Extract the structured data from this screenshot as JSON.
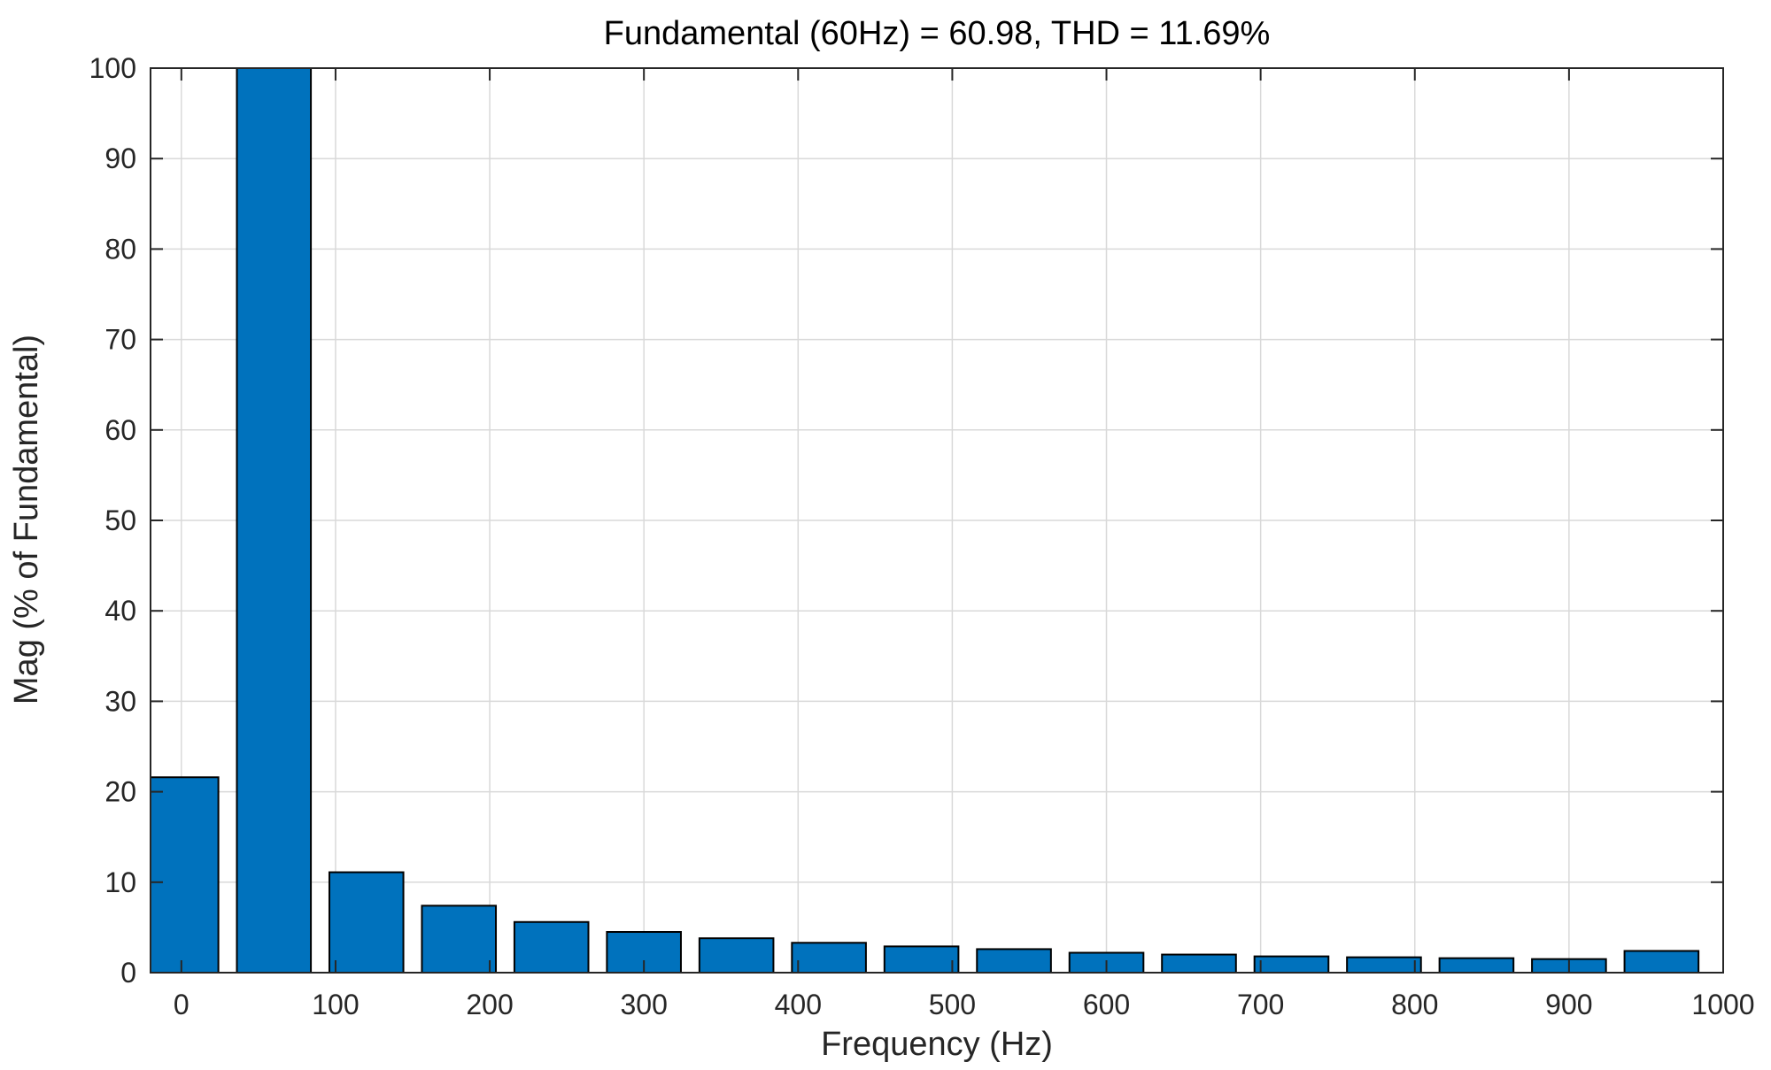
{
  "chart_data": {
    "type": "bar",
    "title": "Fundamental (60Hz) = 60.98, THD = 11.69%",
    "xlabel": "Frequency (Hz)",
    "ylabel": "Mag (% of Fundamental)",
    "x": [
      0,
      60,
      120,
      180,
      240,
      300,
      360,
      420,
      480,
      540,
      600,
      660,
      720,
      780,
      840,
      900,
      960
    ],
    "values": [
      21.6,
      100,
      11.1,
      7.4,
      5.6,
      4.5,
      3.8,
      3.3,
      2.9,
      2.6,
      2.2,
      2.0,
      1.8,
      1.7,
      1.6,
      1.5,
      2.4
    ],
    "xlim": [
      -20,
      1000
    ],
    "ylim": [
      0,
      100
    ],
    "xticks": [
      0,
      100,
      200,
      300,
      400,
      500,
      600,
      700,
      800,
      900,
      1000
    ],
    "xtick_labels": [
      "0",
      "100",
      "200",
      "300",
      "400",
      "500",
      "600",
      "700",
      "800",
      "900",
      "1000"
    ],
    "yticks": [
      0,
      10,
      20,
      30,
      40,
      50,
      60,
      70,
      80,
      90,
      100
    ],
    "ytick_labels": [
      "0",
      "10",
      "20",
      "30",
      "40",
      "50",
      "60",
      "70",
      "80",
      "90",
      "100"
    ],
    "grid": true,
    "legend": "none",
    "colors": {
      "bar": "#0072BD",
      "bar_edge": "#000000",
      "grid": "#d9d9d9",
      "axis": "#262626"
    }
  }
}
